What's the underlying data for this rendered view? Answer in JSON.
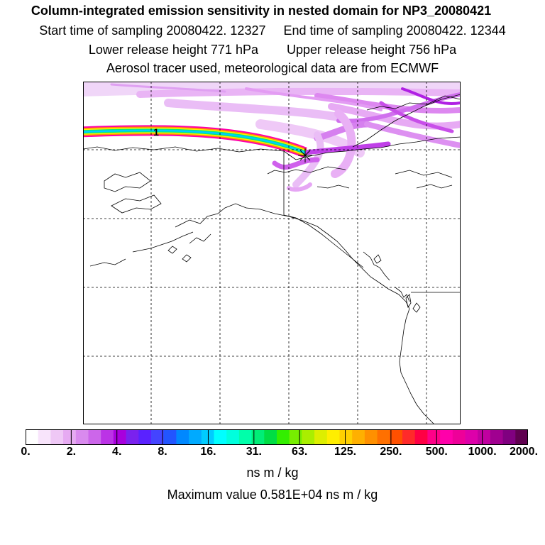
{
  "titles": {
    "main": "Column-integrated emission sensitivity in nested domain for NP3_20080421",
    "start_time": "Start time of sampling 20080422. 12327",
    "end_time": "End time of sampling 20080422. 12344",
    "lower_release": "Lower release height  771 hPa",
    "upper_release": "Upper release height  756 hPa",
    "tracer_info": "Aerosol tracer used, meteorological data are from ECMWF"
  },
  "map": {
    "release_marker_label": "1",
    "overlay_colors": [
      "#f2d8f8",
      "#e8a8f4",
      "#dd70f0",
      "#cc33ee",
      "#b000e0"
    ]
  },
  "colorbar": {
    "colors": [
      "#ffffff",
      "#f8e4fb",
      "#efc8f6",
      "#e6aaf2",
      "#d98aee",
      "#cc66ea",
      "#bb33e6",
      "#a800dd",
      "#7a22ee",
      "#5a22ff",
      "#4444ff",
      "#2255ff",
      "#0088ff",
      "#00aaff",
      "#00ccff",
      "#00ffff",
      "#00ffdd",
      "#00ffaa",
      "#00ee77",
      "#00dd44",
      "#33ee00",
      "#77ee00",
      "#aaee00",
      "#ddee00",
      "#ffee00",
      "#ffd000",
      "#ffb000",
      "#ff9000",
      "#ff7000",
      "#ff5000",
      "#ff2a2a",
      "#ff0044",
      "#ff0088",
      "#ff00aa",
      "#ee0099",
      "#dd00aa",
      "#c000a0",
      "#a00090",
      "#800080",
      "#600050"
    ],
    "tick_labels": [
      "0.",
      "2.",
      "4.",
      "8.",
      "16.",
      "31.",
      "63.",
      "125.",
      "250.",
      "500.",
      "1000.",
      "2000."
    ],
    "unit": "ns m / kg"
  },
  "footer": {
    "max_value": "Maximum value  0.581E+04 ns m / kg"
  }
}
